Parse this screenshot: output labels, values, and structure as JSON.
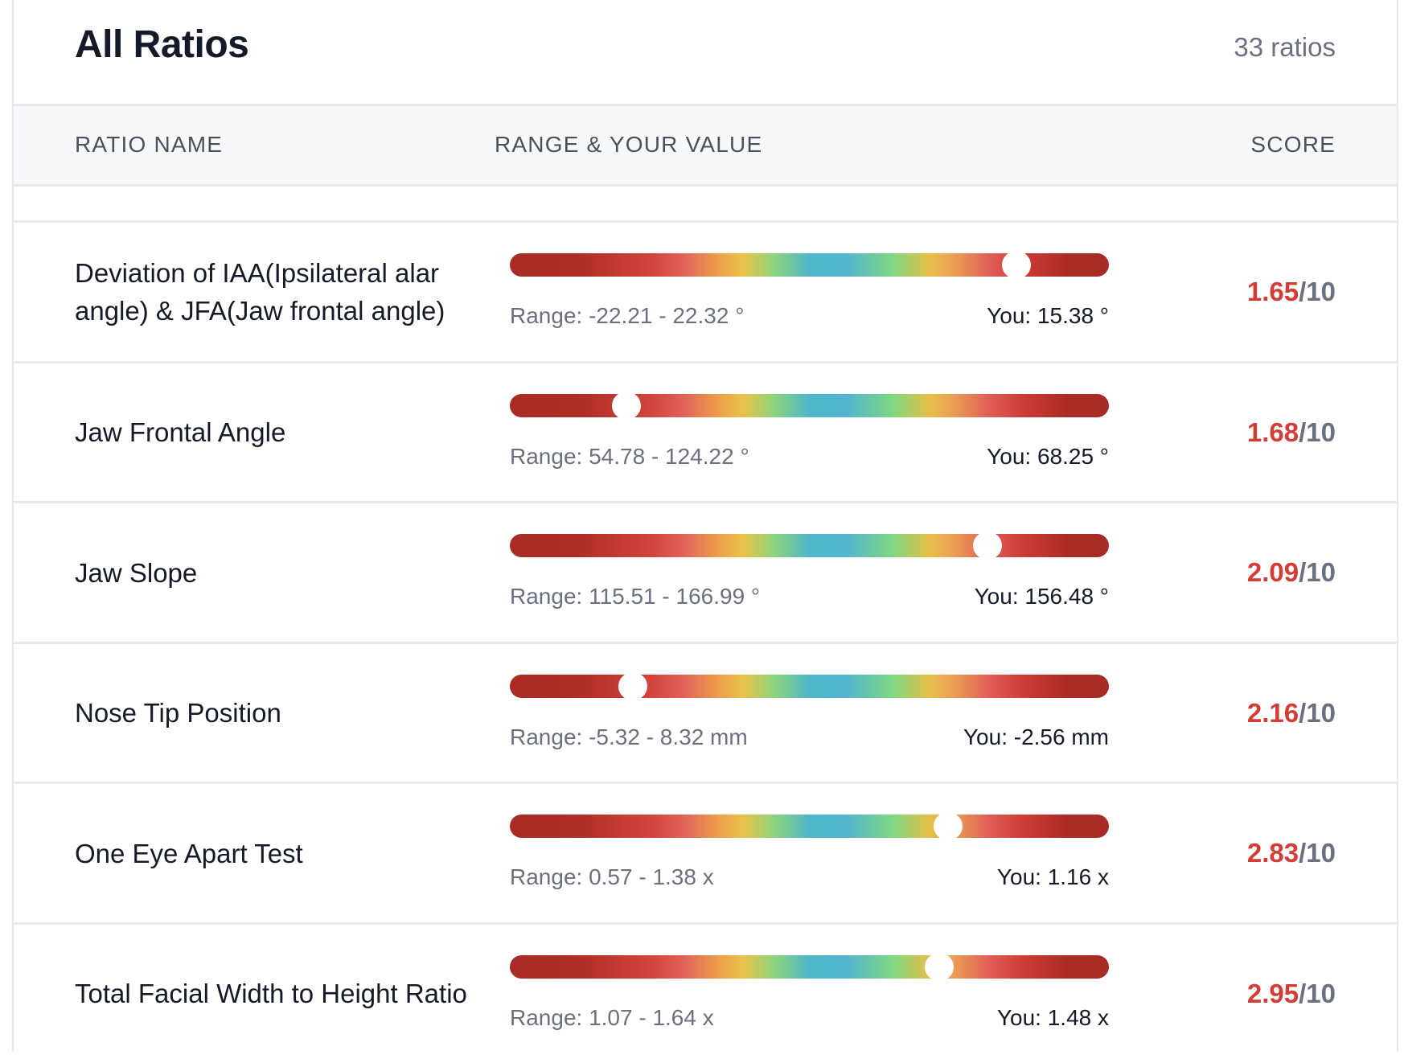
{
  "header": {
    "title": "All Ratios",
    "count": "33 ratios"
  },
  "columns": {
    "name": "RATIO NAME",
    "range": "RANGE & YOUR VALUE",
    "score": "SCORE"
  },
  "rows": [
    {
      "name": "Deviation of IAA(Ipsilateral alar angle) & JFA(Jaw frontal angle)",
      "range": "Range: -22.21 - 22.32 °",
      "you": "You: 15.38 °",
      "score": "1.65",
      "out_of": "/10",
      "marker": 0.845
    },
    {
      "name": "Jaw Frontal Angle",
      "range": "Range: 54.78 - 124.22 °",
      "you": "You: 68.25 °",
      "score": "1.68",
      "out_of": "/10",
      "marker": 0.194
    },
    {
      "name": "Jaw Slope",
      "range": "Range: 115.51 - 166.99 °",
      "you": "You: 156.48 °",
      "score": "2.09",
      "out_of": "/10",
      "marker": 0.797
    },
    {
      "name": "Nose Tip Position",
      "range": "Range: -5.32 - 8.32 mm",
      "you": "You: -2.56 mm",
      "score": "2.16",
      "out_of": "/10",
      "marker": 0.205
    },
    {
      "name": "One Eye Apart Test",
      "range": "Range: 0.57 - 1.38 x",
      "you": "You: 1.16 x",
      "score": "2.83",
      "out_of": "/10",
      "marker": 0.731
    },
    {
      "name": "Total Facial Width to Height Ratio",
      "range": "Range: 1.07 - 1.64 x",
      "you": "You: 1.48 x",
      "score": "2.95",
      "out_of": "/10",
      "marker": 0.717
    }
  ],
  "colors": {
    "score": "#d43d35",
    "bar_end": "#a82c25",
    "bar_center": "#52b4d2"
  }
}
